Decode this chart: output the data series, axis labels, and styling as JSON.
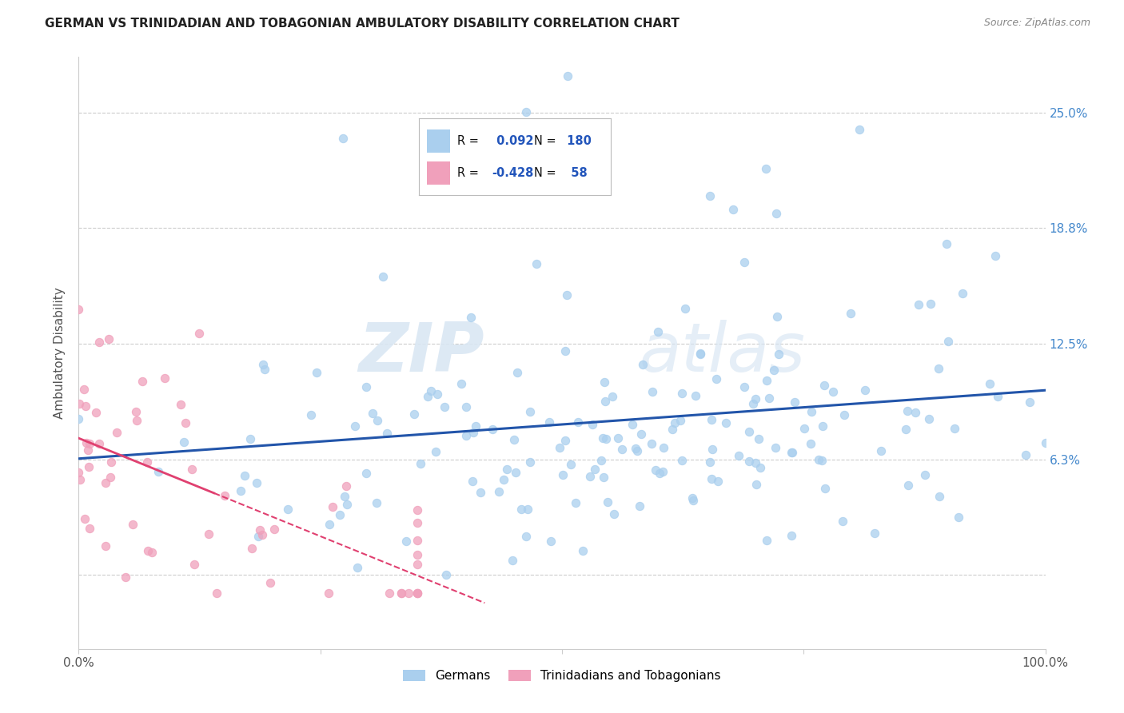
{
  "title": "GERMAN VS TRINIDADIAN AND TOBAGONIAN AMBULATORY DISABILITY CORRELATION CHART",
  "source": "Source: ZipAtlas.com",
  "ylabel": "Ambulatory Disability",
  "legend_label1": "Germans",
  "legend_label2": "Trinidadians and Tobagonians",
  "r1": 0.092,
  "n1": 180,
  "r2": -0.428,
  "n2": 58,
  "color1": "#aacfee",
  "color2": "#f0a0bb",
  "line_color1": "#2255aa",
  "line_color2": "#e04070",
  "yticks": [
    0.0,
    0.0625,
    0.125,
    0.1875,
    0.25
  ],
  "ytick_labels": [
    "",
    "6.3%",
    "12.5%",
    "18.8%",
    "25.0%"
  ],
  "xlim": [
    0.0,
    1.0
  ],
  "ylim": [
    -0.04,
    0.28
  ],
  "ydata_min": 0.0,
  "ydata_max": 0.27,
  "background_color": "#ffffff",
  "watermark_zip": "ZIP",
  "watermark_atlas": "atlas",
  "grid_color": "#cccccc",
  "title_color": "#222222",
  "source_color": "#888888",
  "ytick_color": "#4488cc",
  "xtick_color": "#555555"
}
